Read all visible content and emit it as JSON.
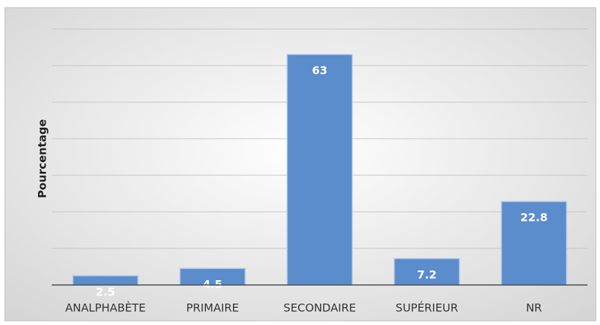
{
  "chart_data": {
    "type": "bar",
    "ylabel": "Pourcentage",
    "categories": [
      "ANALPHABÈTE",
      "PRIMAIRE",
      "SECONDAIRE",
      "SUPÉRIEUR",
      "NR"
    ],
    "values": [
      2.5,
      4.5,
      63,
      7.2,
      22.8
    ],
    "color": "#5b8ccc",
    "ylim": [
      0,
      70
    ],
    "yticks": [
      0,
      10,
      20,
      30,
      40,
      50,
      60,
      70
    ],
    "grid": true
  }
}
